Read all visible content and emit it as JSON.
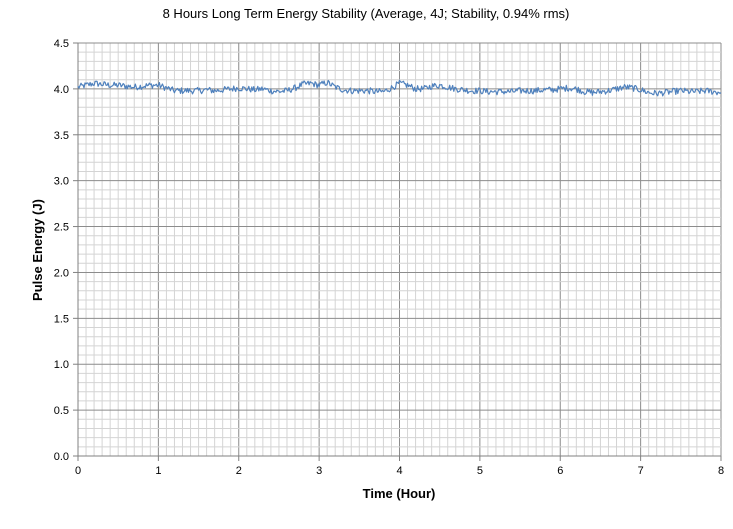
{
  "chart_data": {
    "type": "line",
    "title": "8 Hours Long Term Energy Stability (Average, 4J; Stability, 0.94% rms)",
    "xlabel": "Time (Hour)",
    "ylabel": "Pulse Energy (J)",
    "xlim": [
      0,
      8
    ],
    "ylim": [
      0.0,
      4.5
    ],
    "x_ticks": [
      "0",
      "1",
      "2",
      "3",
      "4",
      "5",
      "6",
      "7",
      "8"
    ],
    "y_ticks": [
      "0.0",
      "0.5",
      "1.0",
      "1.5",
      "2.0",
      "2.5",
      "3.0",
      "3.5",
      "4.0",
      "4.5"
    ],
    "grid": true,
    "legend": "none",
    "series": [
      {
        "color": "#4f81bd",
        "x": [
          0,
          0.1,
          0.2,
          0.3,
          0.4,
          0.5,
          0.6,
          0.7,
          0.8,
          0.9,
          1.0,
          1.1,
          1.2,
          1.3,
          1.4,
          1.5,
          1.6,
          1.7,
          1.8,
          1.9,
          2.0,
          2.1,
          2.2,
          2.3,
          2.4,
          2.5,
          2.6,
          2.7,
          2.8,
          2.9,
          3.0,
          3.1,
          3.2,
          3.3,
          3.4,
          3.5,
          3.6,
          3.7,
          3.8,
          3.9,
          4.0,
          4.1,
          4.2,
          4.3,
          4.4,
          4.5,
          4.6,
          4.7,
          4.8,
          4.9,
          5.0,
          5.1,
          5.2,
          5.3,
          5.4,
          5.5,
          5.6,
          5.7,
          5.8,
          5.9,
          6.0,
          6.1,
          6.2,
          6.3,
          6.4,
          6.5,
          6.6,
          6.7,
          6.8,
          6.9,
          7.0,
          7.1,
          7.2,
          7.3,
          7.4,
          7.5,
          7.6,
          7.7,
          7.8,
          7.9,
          8.0
        ],
        "y": [
          4.02,
          4.04,
          4.06,
          4.05,
          4.04,
          4.04,
          4.03,
          4.02,
          4.03,
          4.04,
          4.04,
          4.01,
          3.98,
          3.98,
          3.98,
          3.98,
          3.99,
          3.98,
          3.99,
          4.0,
          4.01,
          4.0,
          3.99,
          4.0,
          3.98,
          3.97,
          3.98,
          4.01,
          4.05,
          4.06,
          4.04,
          4.07,
          4.02,
          3.99,
          3.98,
          3.98,
          3.98,
          3.97,
          3.97,
          4.01,
          4.06,
          4.04,
          4.0,
          4.0,
          4.03,
          4.04,
          4.02,
          4.0,
          3.99,
          3.98,
          3.98,
          3.97,
          3.97,
          3.97,
          3.97,
          3.98,
          3.98,
          3.98,
          3.99,
          3.99,
          4.0,
          4.01,
          4.0,
          3.97,
          3.96,
          3.97,
          3.98,
          4.0,
          4.02,
          4.01,
          3.99,
          3.96,
          3.95,
          3.96,
          3.97,
          3.98,
          3.97,
          3.97,
          3.98,
          3.97,
          3.96
        ]
      }
    ]
  }
}
